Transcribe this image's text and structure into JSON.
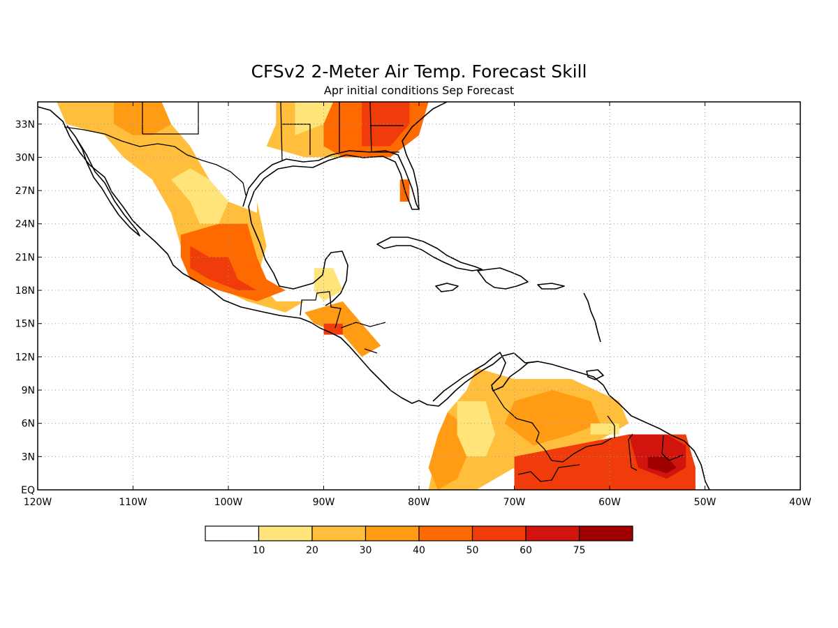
{
  "title": "CFSv2 2-Meter Air Temp. Forecast Skill",
  "subtitle": "Apr initial conditions  Sep Forecast",
  "map": {
    "lon_range": [
      -120,
      -40
    ],
    "lat_range": [
      0,
      35
    ],
    "lat_ticks": [
      {
        "value": 33,
        "label": "33N"
      },
      {
        "value": 30,
        "label": "30N"
      },
      {
        "value": 27,
        "label": "27N"
      },
      {
        "value": 24,
        "label": "24N"
      },
      {
        "value": 21,
        "label": "21N"
      },
      {
        "value": 18,
        "label": "18N"
      },
      {
        "value": 15,
        "label": "15N"
      },
      {
        "value": 12,
        "label": "12N"
      },
      {
        "value": 9,
        "label": "9N"
      },
      {
        "value": 6,
        "label": "6N"
      },
      {
        "value": 3,
        "label": "3N"
      },
      {
        "value": 0,
        "label": "EQ"
      }
    ],
    "lon_ticks": [
      {
        "value": -120,
        "label": "120W"
      },
      {
        "value": -110,
        "label": "110W"
      },
      {
        "value": -100,
        "label": "100W"
      },
      {
        "value": -90,
        "label": "90W"
      },
      {
        "value": -80,
        "label": "80W"
      },
      {
        "value": -70,
        "label": "70W"
      },
      {
        "value": -60,
        "label": "60W"
      },
      {
        "value": -50,
        "label": "50W"
      },
      {
        "value": -40,
        "label": "40W"
      }
    ],
    "grid": true
  },
  "colorbar": {
    "colors": [
      "#ffffff",
      "#ffe47a",
      "#ffbe3c",
      "#ff9c14",
      "#ff6a00",
      "#f03c0a",
      "#d2140e",
      "#a00000"
    ],
    "labels": [
      "10",
      "20",
      "30",
      "40",
      "50",
      "60",
      "75"
    ]
  },
  "skill_regions": [
    {
      "level": 2,
      "points": [
        [
          -118,
          35
        ],
        [
          -108,
          35
        ],
        [
          -104,
          31
        ],
        [
          -102,
          28
        ],
        [
          -100,
          26
        ],
        [
          -97,
          25
        ],
        [
          -97,
          26
        ],
        [
          -96,
          22
        ],
        [
          -97,
          19
        ],
        [
          -95,
          17
        ],
        [
          -92,
          17
        ],
        [
          -94,
          16
        ],
        [
          -98,
          17
        ],
        [
          -103,
          19
        ],
        [
          -105,
          22
        ],
        [
          -106,
          25
        ],
        [
          -108,
          28
        ],
        [
          -111,
          30
        ],
        [
          -113,
          32
        ],
        [
          -117,
          33
        ]
      ]
    },
    {
      "level": 1,
      "points": [
        [
          -106,
          28
        ],
        [
          -104,
          26
        ],
        [
          -103,
          24
        ],
        [
          -101,
          24
        ],
        [
          -100,
          26
        ],
        [
          -102,
          28
        ],
        [
          -104,
          29
        ]
      ]
    },
    {
      "level": 4,
      "points": [
        [
          -105,
          23
        ],
        [
          -101,
          24
        ],
        [
          -98,
          24
        ],
        [
          -97,
          21
        ],
        [
          -96,
          19
        ],
        [
          -94,
          18
        ],
        [
          -97,
          17
        ],
        [
          -101,
          18
        ],
        [
          -104,
          19
        ],
        [
          -105,
          21
        ]
      ]
    },
    {
      "level": 5,
      "points": [
        [
          -104,
          22
        ],
        [
          -102,
          21
        ],
        [
          -100,
          21
        ],
        [
          -99,
          19
        ],
        [
          -97,
          18
        ],
        [
          -99,
          18
        ],
        [
          -102,
          19
        ],
        [
          -104,
          20
        ]
      ]
    },
    {
      "level": 3,
      "points": [
        [
          -112,
          35
        ],
        [
          -107,
          35
        ],
        [
          -106,
          33
        ],
        [
          -108,
          32
        ],
        [
          -110,
          32
        ],
        [
          -112,
          33
        ]
      ]
    },
    {
      "level": 2,
      "points": [
        [
          -95,
          35
        ],
        [
          -80,
          35
        ],
        [
          -80,
          32
        ],
        [
          -84,
          30
        ],
        [
          -88,
          30
        ],
        [
          -92,
          30
        ],
        [
          -96,
          31
        ],
        [
          -95,
          33
        ]
      ]
    },
    {
      "level": 1,
      "points": [
        [
          -93,
          35
        ],
        [
          -89,
          35
        ],
        [
          -90,
          33
        ],
        [
          -93,
          32
        ]
      ]
    },
    {
      "level": 4,
      "points": [
        [
          -89,
          35
        ],
        [
          -79,
          35
        ],
        [
          -80,
          32
        ],
        [
          -83,
          30
        ],
        [
          -88,
          30
        ],
        [
          -90,
          31
        ],
        [
          -90,
          33
        ]
      ]
    },
    {
      "level": 5,
      "points": [
        [
          -86,
          35
        ],
        [
          -81,
          35
        ],
        [
          -81,
          33
        ],
        [
          -83,
          31
        ],
        [
          -86,
          31
        ]
      ]
    },
    {
      "level": 4,
      "points": [
        [
          -82,
          28
        ],
        [
          -81,
          28
        ],
        [
          -81,
          26
        ],
        [
          -82,
          26
        ]
      ]
    },
    {
      "level": 1,
      "points": [
        [
          -91,
          20
        ],
        [
          -89,
          20
        ],
        [
          -88,
          18
        ],
        [
          -90,
          17
        ],
        [
          -91,
          18
        ]
      ]
    },
    {
      "level": 3,
      "points": [
        [
          -92,
          16
        ],
        [
          -88,
          17
        ],
        [
          -86,
          15
        ],
        [
          -84,
          13
        ],
        [
          -86,
          12
        ],
        [
          -88,
          14
        ],
        [
          -91,
          15
        ]
      ]
    },
    {
      "level": 5,
      "points": [
        [
          -90,
          15
        ],
        [
          -88,
          15
        ],
        [
          -88,
          14
        ],
        [
          -90,
          14
        ]
      ]
    },
    {
      "level": 2,
      "points": [
        [
          -74,
          11
        ],
        [
          -70,
          10
        ],
        [
          -64,
          10
        ],
        [
          -59,
          8
        ],
        [
          -58,
          6
        ],
        [
          -62,
          4
        ],
        [
          -66,
          3
        ],
        [
          -70,
          2
        ],
        [
          -74,
          0
        ],
        [
          -79,
          0
        ],
        [
          -78,
          4
        ],
        [
          -77,
          7
        ],
        [
          -75,
          9
        ]
      ]
    },
    {
      "level": 3,
      "points": [
        [
          -77,
          7
        ],
        [
          -74,
          5
        ],
        [
          -75,
          3
        ],
        [
          -76,
          1
        ],
        [
          -78,
          0
        ],
        [
          -79,
          2
        ],
        [
          -78,
          5
        ]
      ]
    },
    {
      "level": 3,
      "points": [
        [
          -70,
          8
        ],
        [
          -66,
          9
        ],
        [
          -62,
          8
        ],
        [
          -61,
          6
        ],
        [
          -64,
          5
        ],
        [
          -68,
          4
        ],
        [
          -71,
          6
        ]
      ]
    },
    {
      "level": 1,
      "points": [
        [
          -76,
          8
        ],
        [
          -73,
          8
        ],
        [
          -72,
          5
        ],
        [
          -73,
          3
        ],
        [
          -75,
          3
        ],
        [
          -76,
          5
        ]
      ]
    },
    {
      "level": 1,
      "points": [
        [
          -62,
          6
        ],
        [
          -59,
          6
        ],
        [
          -59,
          5
        ],
        [
          -62,
          5
        ]
      ]
    },
    {
      "level": 5,
      "points": [
        [
          -70,
          3
        ],
        [
          -64,
          4
        ],
        [
          -58,
          5
        ],
        [
          -52,
          5
        ],
        [
          -51,
          2
        ],
        [
          -51,
          0
        ],
        [
          -70,
          0
        ]
      ]
    },
    {
      "level": 6,
      "points": [
        [
          -58,
          5
        ],
        [
          -54,
          5
        ],
        [
          -52,
          4
        ],
        [
          -52,
          2
        ],
        [
          -54,
          1
        ],
        [
          -57,
          2
        ]
      ]
    },
    {
      "level": 7,
      "points": [
        [
          -56,
          3
        ],
        [
          -54,
          3
        ],
        [
          -53,
          2
        ],
        [
          -54,
          1.5
        ],
        [
          -56,
          2
        ]
      ]
    }
  ]
}
